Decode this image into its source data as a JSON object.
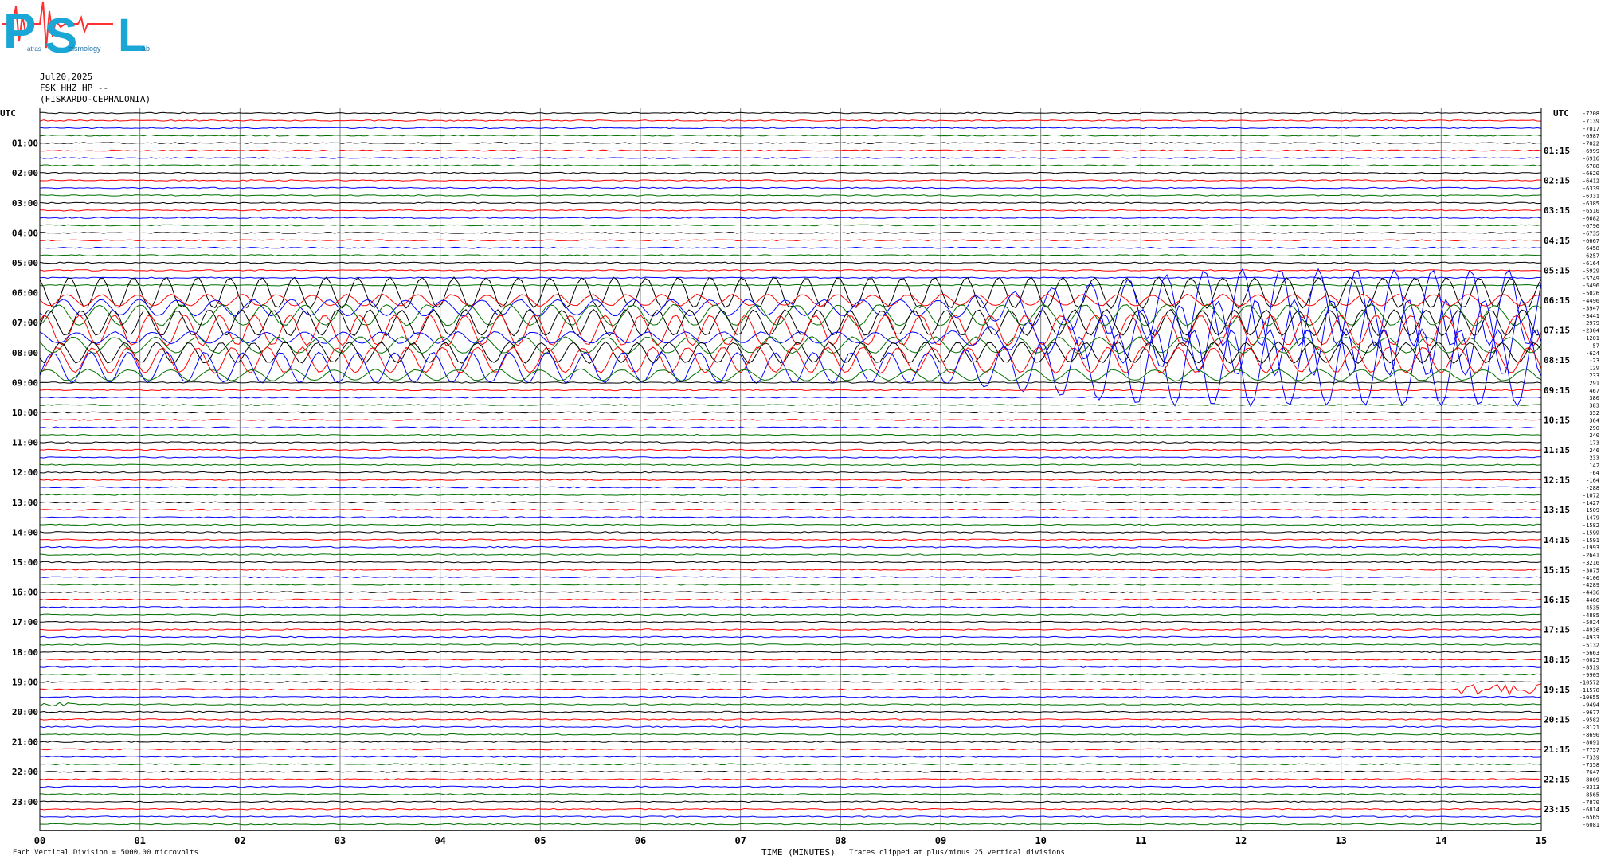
{
  "logo": {
    "letters": [
      "P",
      "S",
      "L"
    ],
    "small_words": [
      "atras",
      "eismology",
      "ab"
    ]
  },
  "header": {
    "date": "Jul20,2025",
    "station": "FSK HHZ HP --",
    "location": "(FISKARDO-CEPHALONIA)"
  },
  "footer": {
    "left_note": "Each Vertical Division = 5000.00 microvolts",
    "xlabel": "TIME (MINUTES)",
    "clip_note": "Traces clipped at plus/minus 25 vertical divisions"
  },
  "chart_data": {
    "type": "line",
    "left_axis_header": "UTC",
    "right_axis_header": "UTC",
    "x_ticks": [
      "00",
      "01",
      "02",
      "03",
      "04",
      "05",
      "06",
      "07",
      "08",
      "09",
      "10",
      "11",
      "12",
      "13",
      "14",
      "15"
    ],
    "xlim": [
      0,
      15
    ],
    "left_time_labels": [
      "01:00",
      "02:00",
      "03:00",
      "04:00",
      "05:00",
      "06:00",
      "07:00",
      "08:00",
      "09:00",
      "10:00",
      "11:00",
      "12:00",
      "13:00",
      "14:00",
      "15:00",
      "16:00",
      "17:00",
      "18:00",
      "19:00",
      "20:00",
      "21:00",
      "22:00",
      "23:00"
    ],
    "right_time_labels": [
      "01:15",
      "02:15",
      "03:15",
      "04:15",
      "05:15",
      "06:15",
      "07:15",
      "08:15",
      "09:15",
      "10:15",
      "11:15",
      "12:15",
      "13:15",
      "14:15",
      "15:15",
      "16:15",
      "17:15",
      "18:15",
      "19:15",
      "20:15",
      "21:15",
      "22:15",
      "23:15"
    ],
    "trace_colors": [
      "#000000",
      "#ff0000",
      "#0000ff",
      "#007000"
    ],
    "trace_count": 96,
    "offset_labels": [
      "-7208",
      "-7139",
      "-7017",
      "-6987",
      "-7022",
      "-6999",
      "-6916",
      "-6788",
      "-6620",
      "-6412",
      "-6339",
      "-6331",
      "-6385",
      "-6510",
      "-6682",
      "-6796",
      "-6735",
      "-6667",
      "-6458",
      "-6257",
      "-6164",
      "-5929",
      "-5749",
      "-5496",
      "-5026",
      "-4496",
      "-3947",
      "-3441",
      "-2979",
      "-2304",
      "-1201",
      "-57",
      "-624",
      "-23",
      "129",
      "233",
      "291",
      "467",
      "380",
      "383",
      "352",
      "364",
      "290",
      "240",
      "173",
      "246",
      "233",
      "142",
      "-64",
      "-164",
      "-288",
      "-1072",
      "-1427",
      "-1509",
      "-1479",
      "-1582",
      "-1599",
      "-1591",
      "-1993",
      "-2641",
      "-3216",
      "-3875",
      "-4106",
      "-4289",
      "-4436",
      "-4466",
      "-4535",
      "-4885",
      "-5024",
      "-4936",
      "-4933",
      "-5132",
      "-5663",
      "-6025",
      "-8519",
      "-9905",
      "-10572",
      "-11578",
      "-10655",
      "-9494",
      "-9677",
      "-9582",
      "-8121",
      "-8690",
      "-8691",
      "-7757",
      "-7339",
      "-7358",
      "-7647",
      "-8009",
      "-8313",
      "-8565",
      "-7870",
      "-6814",
      "-6565",
      "-6081"
    ]
  }
}
